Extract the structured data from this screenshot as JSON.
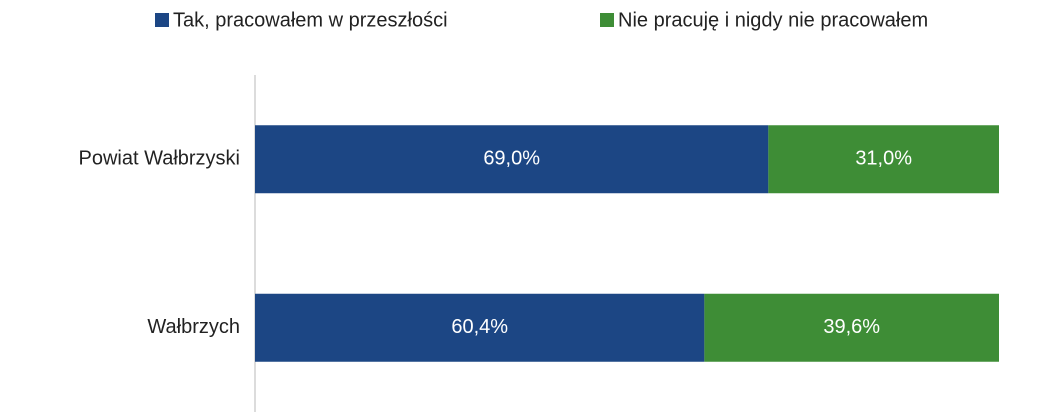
{
  "chart_data": {
    "type": "bar",
    "orientation": "horizontal",
    "stacked": true,
    "categories": [
      "Powiat Wałbrzyski",
      "Wałbrzych"
    ],
    "series": [
      {
        "name": "Tak, pracowałem w przeszłości",
        "color": "#1c4684",
        "values": [
          69.0,
          60.4
        ],
        "value_labels": [
          "69,0%",
          "60,4%"
        ]
      },
      {
        "name": "Nie pracuję i nigdy nie pracowałem",
        "color": "#3e8d36",
        "values": [
          31.0,
          39.6
        ],
        "value_labels": [
          "31,0%",
          "39,6%"
        ]
      }
    ],
    "xlim": [
      0,
      100
    ],
    "legend": "top"
  }
}
